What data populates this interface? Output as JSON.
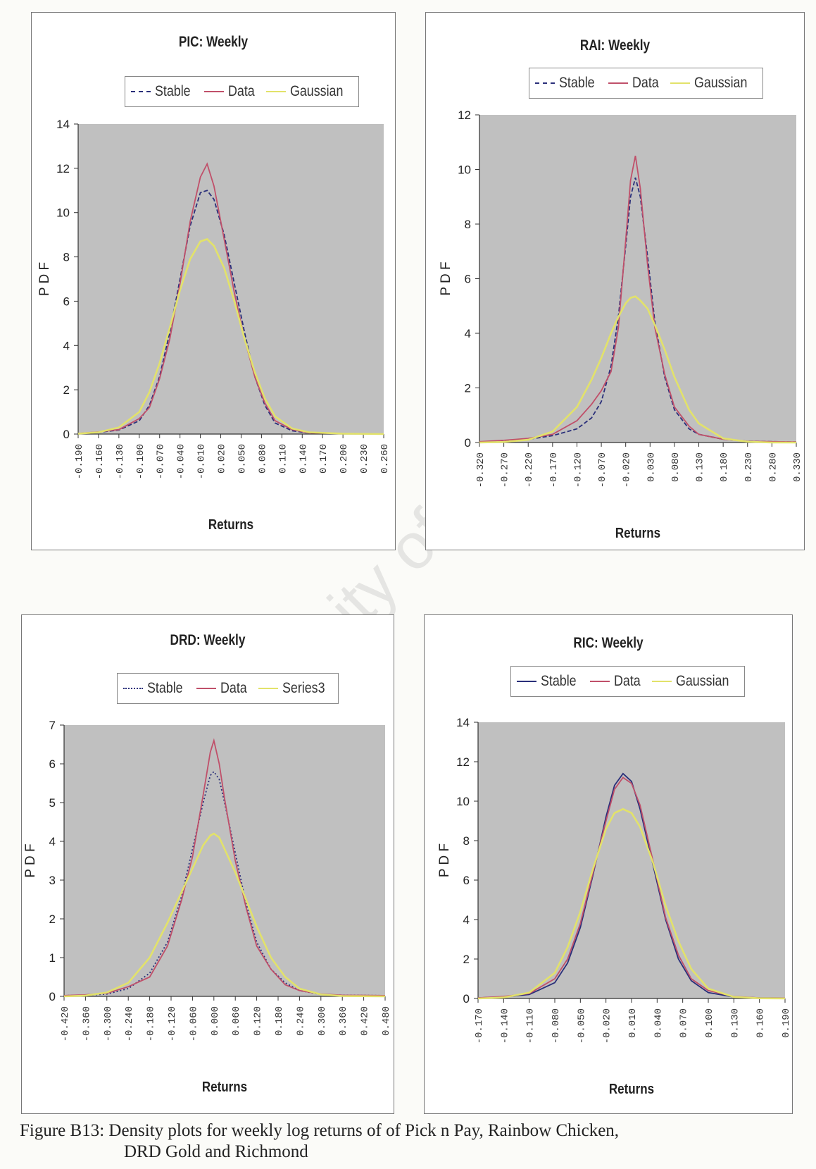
{
  "watermark": "University of Cape Town",
  "caption": {
    "line1": "Figure B13: Density plots for weekly log returns of of Pick n Pay, Rainbow Chicken,",
    "line2": "DRD Gold and Richmond"
  },
  "colors": {
    "plot_area": "#c0c0c0",
    "stable": "#2a2f7a",
    "data": "#c0506a",
    "gaussian": "#e2e26a"
  },
  "chart_data": [
    {
      "type": "line",
      "title": "PIC: Weekly",
      "xlabel": "Returns",
      "ylabel": "P D F",
      "ylim": [
        0,
        14
      ],
      "yticks": [
        0,
        2,
        4,
        6,
        8,
        10,
        12,
        14
      ],
      "ytick_labels": [
        "0",
        "2",
        "4",
        "6",
        "8",
        "10",
        "12",
        "14"
      ],
      "xticks": [
        -0.19,
        -0.16,
        -0.13,
        -0.1,
        -0.07,
        -0.04,
        -0.01,
        0.02,
        0.05,
        0.08,
        0.11,
        0.14,
        0.17,
        0.2,
        0.23,
        0.26
      ],
      "xtick_labels": [
        "-0.190",
        "-0.160",
        "-0.130",
        "-0.100",
        "-0.070",
        "-0.040",
        "-0.010",
        "0.020",
        "0.050",
        "0.080",
        "0.110",
        "0.140",
        "0.170",
        "0.200",
        "0.230",
        "0.260"
      ],
      "xlim": [
        -0.19,
        0.26
      ],
      "legend": "top",
      "grid": false,
      "series": [
        {
          "name": "Stable",
          "x": [
            -0.19,
            -0.16,
            -0.13,
            -0.1,
            -0.085,
            -0.07,
            -0.055,
            -0.04,
            -0.025,
            -0.01,
            0.0,
            0.01,
            0.025,
            0.04,
            0.055,
            0.07,
            0.085,
            0.1,
            0.125,
            0.15,
            0.2,
            0.26
          ],
          "y": [
            0.02,
            0.08,
            0.18,
            0.6,
            1.3,
            2.6,
            4.6,
            7.0,
            9.4,
            10.9,
            11.0,
            10.6,
            9.0,
            6.8,
            4.6,
            2.6,
            1.3,
            0.5,
            0.15,
            0.05,
            0.02,
            0.0
          ]
        },
        {
          "name": "Data",
          "x": [
            -0.19,
            -0.16,
            -0.13,
            -0.1,
            -0.085,
            -0.07,
            -0.055,
            -0.04,
            -0.025,
            -0.01,
            0.0,
            0.01,
            0.025,
            0.04,
            0.055,
            0.07,
            0.085,
            0.1,
            0.125,
            0.15,
            0.2,
            0.26
          ],
          "y": [
            0.03,
            0.1,
            0.2,
            0.7,
            1.2,
            2.5,
            4.3,
            6.8,
            9.6,
            11.6,
            12.2,
            11.2,
            8.8,
            6.4,
            4.3,
            2.6,
            1.4,
            0.6,
            0.2,
            0.05,
            0.02,
            0.0
          ]
        },
        {
          "name": "Gaussian",
          "x": [
            -0.19,
            -0.16,
            -0.13,
            -0.1,
            -0.085,
            -0.07,
            -0.055,
            -0.04,
            -0.025,
            -0.01,
            0.0,
            0.01,
            0.025,
            0.04,
            0.055,
            0.07,
            0.085,
            0.1,
            0.125,
            0.15,
            0.2,
            0.26
          ],
          "y": [
            0.02,
            0.08,
            0.3,
            1.0,
            1.9,
            3.2,
            4.8,
            6.5,
            7.9,
            8.7,
            8.8,
            8.5,
            7.5,
            6.0,
            4.3,
            2.8,
            1.6,
            0.8,
            0.25,
            0.08,
            0.02,
            0.0
          ]
        }
      ]
    },
    {
      "type": "line",
      "title": "RAI: Weekly",
      "xlabel": "Returns",
      "ylabel": "P D F",
      "ylim": [
        0,
        12
      ],
      "yticks": [
        0,
        2,
        4,
        6,
        8,
        10,
        12
      ],
      "ytick_labels": [
        "0",
        "2",
        "4",
        "6",
        "8",
        "10",
        "12"
      ],
      "xticks": [
        -0.32,
        -0.27,
        -0.22,
        -0.17,
        -0.12,
        -0.07,
        -0.02,
        0.03,
        0.08,
        0.13,
        0.18,
        0.23,
        0.28,
        0.33
      ],
      "xtick_labels": [
        "-0.320",
        "-0.270",
        "-0.220",
        "-0.170",
        "-0.120",
        "-0.070",
        "-0.020",
        "0.030",
        "0.080",
        "0.130",
        "0.180",
        "0.230",
        "0.280",
        "0.330"
      ],
      "xlim": [
        -0.32,
        0.33
      ],
      "legend": "top",
      "grid": false,
      "series": [
        {
          "name": "Stable",
          "x": [
            -0.32,
            -0.27,
            -0.22,
            -0.17,
            -0.12,
            -0.09,
            -0.07,
            -0.05,
            -0.035,
            -0.02,
            -0.01,
            0.0,
            0.01,
            0.025,
            0.04,
            0.06,
            0.08,
            0.11,
            0.13,
            0.18,
            0.23,
            0.28,
            0.33
          ],
          "y": [
            0.02,
            0.05,
            0.12,
            0.25,
            0.5,
            0.9,
            1.5,
            2.8,
            4.6,
            7.2,
            9.0,
            9.7,
            9.0,
            6.8,
            4.4,
            2.4,
            1.2,
            0.5,
            0.3,
            0.12,
            0.05,
            0.03,
            0.02
          ]
        },
        {
          "name": "Data",
          "x": [
            -0.32,
            -0.27,
            -0.22,
            -0.17,
            -0.12,
            -0.09,
            -0.07,
            -0.05,
            -0.035,
            -0.02,
            -0.01,
            0.0,
            0.01,
            0.025,
            0.04,
            0.06,
            0.08,
            0.11,
            0.13,
            0.18,
            0.23,
            0.28,
            0.33
          ],
          "y": [
            0.03,
            0.08,
            0.15,
            0.3,
            0.8,
            1.4,
            1.9,
            2.6,
            4.2,
            7.4,
            9.6,
            10.5,
            9.3,
            6.5,
            4.2,
            2.5,
            1.3,
            0.6,
            0.3,
            0.12,
            0.05,
            0.03,
            0.02
          ]
        },
        {
          "name": "Gaussian",
          "x": [
            -0.32,
            -0.27,
            -0.22,
            -0.17,
            -0.12,
            -0.09,
            -0.07,
            -0.05,
            -0.035,
            -0.02,
            -0.01,
            0.0,
            0.01,
            0.025,
            0.04,
            0.06,
            0.08,
            0.11,
            0.13,
            0.18,
            0.23,
            0.28,
            0.33
          ],
          "y": [
            0.0,
            0.02,
            0.1,
            0.4,
            1.3,
            2.3,
            3.1,
            4.0,
            4.6,
            5.1,
            5.3,
            5.35,
            5.2,
            4.9,
            4.3,
            3.4,
            2.4,
            1.2,
            0.7,
            0.15,
            0.03,
            0.0,
            0.0
          ]
        }
      ]
    },
    {
      "type": "line",
      "title": "DRD: Weekly",
      "xlabel": "Returns",
      "ylabel": "P D F",
      "ylim": [
        0,
        7
      ],
      "yticks": [
        0,
        1,
        2,
        3,
        4,
        5,
        6,
        7
      ],
      "ytick_labels": [
        "0",
        "1",
        "2",
        "3",
        "4",
        "5",
        "6",
        "7"
      ],
      "xticks": [
        -0.42,
        -0.36,
        -0.3,
        -0.24,
        -0.18,
        -0.12,
        -0.06,
        0.0,
        0.06,
        0.12,
        0.18,
        0.24,
        0.3,
        0.36,
        0.42,
        0.48
      ],
      "xtick_labels": [
        "-0.420",
        "-0.360",
        "-0.300",
        "-0.240",
        "-0.180",
        "-0.120",
        "-0.060",
        "0.000",
        "0.060",
        "0.120",
        "0.180",
        "0.240",
        "0.300",
        "0.360",
        "0.420",
        "0.480"
      ],
      "xlim": [
        -0.42,
        0.48
      ],
      "legend": "top",
      "grid": false,
      "series": [
        {
          "name": "Stable",
          "x": [
            -0.42,
            -0.36,
            -0.3,
            -0.24,
            -0.18,
            -0.13,
            -0.09,
            -0.06,
            -0.03,
            -0.01,
            0.0,
            0.015,
            0.03,
            0.06,
            0.09,
            0.12,
            0.16,
            0.2,
            0.24,
            0.3,
            0.36,
            0.48
          ],
          "y": [
            0.02,
            0.03,
            0.06,
            0.2,
            0.6,
            1.4,
            2.6,
            3.8,
            5.0,
            5.7,
            5.8,
            5.6,
            5.0,
            3.7,
            2.4,
            1.4,
            0.7,
            0.35,
            0.15,
            0.05,
            0.03,
            0.02
          ]
        },
        {
          "name": "Data",
          "x": [
            -0.42,
            -0.36,
            -0.3,
            -0.24,
            -0.18,
            -0.13,
            -0.09,
            -0.06,
            -0.03,
            -0.01,
            0.0,
            0.015,
            0.03,
            0.06,
            0.09,
            0.12,
            0.16,
            0.2,
            0.24,
            0.3,
            0.36,
            0.48
          ],
          "y": [
            0.02,
            0.04,
            0.08,
            0.25,
            0.5,
            1.3,
            2.5,
            3.6,
            5.2,
            6.3,
            6.6,
            6.0,
            5.1,
            3.5,
            2.3,
            1.3,
            0.7,
            0.3,
            0.15,
            0.06,
            0.03,
            0.02
          ]
        },
        {
          "name": "Series3",
          "x": [
            -0.42,
            -0.36,
            -0.3,
            -0.24,
            -0.18,
            -0.13,
            -0.09,
            -0.06,
            -0.03,
            -0.01,
            0.0,
            0.015,
            0.03,
            0.06,
            0.09,
            0.12,
            0.16,
            0.2,
            0.24,
            0.3,
            0.36,
            0.48
          ],
          "y": [
            0.0,
            0.02,
            0.1,
            0.35,
            1.0,
            1.9,
            2.7,
            3.3,
            3.9,
            4.15,
            4.2,
            4.1,
            3.8,
            3.2,
            2.5,
            1.8,
            1.0,
            0.5,
            0.2,
            0.05,
            0.01,
            0.0
          ]
        }
      ]
    },
    {
      "type": "line",
      "title": "RIC: Weekly",
      "xlabel": "Returns",
      "ylabel": "P D F",
      "ylim": [
        0,
        14
      ],
      "yticks": [
        0,
        2,
        4,
        6,
        8,
        10,
        12,
        14
      ],
      "ytick_labels": [
        "0",
        "2",
        "4",
        "6",
        "8",
        "10",
        "12",
        "14"
      ],
      "xticks": [
        -0.17,
        -0.14,
        -0.11,
        -0.08,
        -0.05,
        -0.02,
        0.01,
        0.04,
        0.07,
        0.1,
        0.13,
        0.16,
        0.19
      ],
      "xtick_labels": [
        "-0.170",
        "-0.140",
        "-0.110",
        "-0.080",
        "-0.050",
        "-0.020",
        "0.010",
        "0.040",
        "0.070",
        "0.100",
        "0.130",
        "0.160",
        "0.190"
      ],
      "xlim": [
        -0.17,
        0.19
      ],
      "legend": "top",
      "grid": false,
      "series": [
        {
          "name": "Stable",
          "x": [
            -0.17,
            -0.14,
            -0.11,
            -0.08,
            -0.065,
            -0.05,
            -0.035,
            -0.02,
            -0.01,
            0.0,
            0.01,
            0.02,
            0.035,
            0.05,
            0.065,
            0.08,
            0.1,
            0.13,
            0.16,
            0.19
          ],
          "y": [
            0.03,
            0.08,
            0.2,
            0.8,
            1.8,
            3.6,
            6.3,
            9.2,
            10.8,
            11.4,
            11.0,
            9.6,
            6.8,
            4.0,
            2.0,
            0.9,
            0.3,
            0.08,
            0.03,
            0.02
          ]
        },
        {
          "name": "Data",
          "x": [
            -0.17,
            -0.14,
            -0.11,
            -0.08,
            -0.065,
            -0.05,
            -0.035,
            -0.02,
            -0.01,
            0.0,
            0.01,
            0.02,
            0.035,
            0.05,
            0.065,
            0.08,
            0.1,
            0.13,
            0.16,
            0.19
          ],
          "y": [
            0.03,
            0.1,
            0.25,
            1.0,
            2.0,
            3.8,
            6.4,
            9.0,
            10.6,
            11.2,
            10.9,
            9.8,
            7.0,
            4.1,
            2.2,
            1.0,
            0.4,
            0.1,
            0.03,
            0.02
          ]
        },
        {
          "name": "Gaussian",
          "x": [
            -0.17,
            -0.14,
            -0.11,
            -0.08,
            -0.065,
            -0.05,
            -0.035,
            -0.02,
            -0.01,
            0.0,
            0.01,
            0.02,
            0.035,
            0.05,
            0.065,
            0.08,
            0.1,
            0.13,
            0.16,
            0.19
          ],
          "y": [
            0.0,
            0.05,
            0.3,
            1.3,
            2.6,
            4.4,
            6.6,
            8.6,
            9.4,
            9.6,
            9.4,
            8.7,
            6.9,
            4.7,
            2.9,
            1.5,
            0.5,
            0.08,
            0.01,
            0.0
          ]
        }
      ]
    }
  ]
}
